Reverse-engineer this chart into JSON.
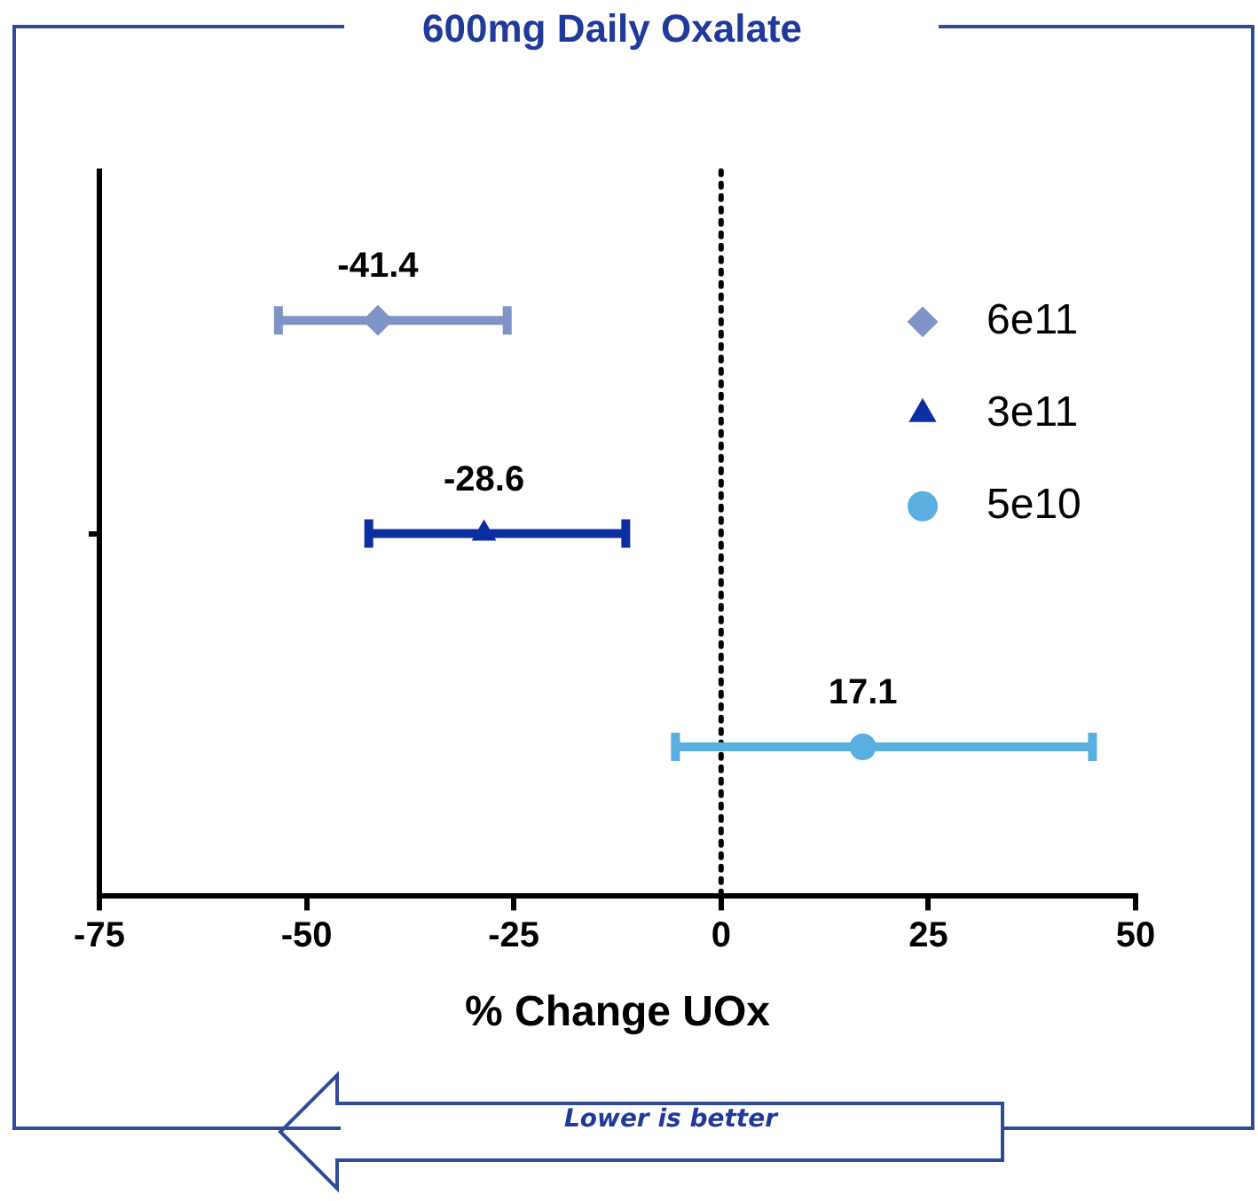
{
  "chart_data": {
    "type": "scatter",
    "orientation": "horizontal",
    "title": "600mg Daily Oxalate",
    "xlabel": "% Change UOx",
    "categories": [
      null,
      null,
      null
    ],
    "series": [
      {
        "name": "6e11",
        "color": "#7f93c6",
        "marker": "diamond",
        "values": [
          -41.4,
          null,
          null
        ],
        "errors": [
          [
            -53.4,
            -25.8
          ],
          null,
          null
        ]
      },
      {
        "name": "3e11",
        "color": "#0b2ea0",
        "marker": "triangle",
        "values": [
          null,
          -28.6,
          null
        ],
        "errors": [
          null,
          [
            -42.5,
            -11.5
          ],
          null
        ]
      },
      {
        "name": "5e10",
        "color": "#5aaee0",
        "marker": "circle",
        "values": [
          null,
          null,
          17.1
        ],
        "errors": [
          null,
          null,
          [
            -5.5,
            44.8
          ]
        ]
      }
    ],
    "xlim": [
      -75,
      50
    ],
    "xticks": [
      -75,
      -50,
      -25,
      0,
      25,
      50
    ],
    "ref_lines": [
      {
        "axis": "x",
        "value": 0,
        "color": "#000000",
        "line_style": "dotted"
      }
    ],
    "data_labels": true,
    "legend": "top right",
    "grid": false,
    "tick_labels": "x",
    "annotations": [
      "Lower is better"
    ]
  }
}
